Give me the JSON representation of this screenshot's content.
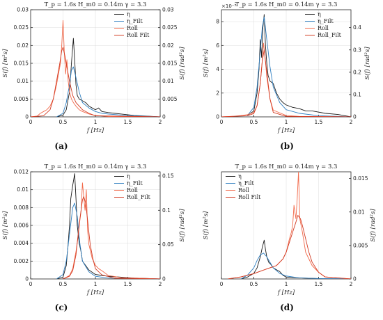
{
  "figure": {
    "colors": {
      "eta": "#1a1a1a",
      "eta_filt": "#2f7fc1",
      "roll": "#f26a4b",
      "roll_filt": "#d23a22"
    }
  },
  "chart_data": [
    {
      "id": "a",
      "type": "line",
      "caption": "(a)",
      "title": "T_p = 1.6s  H_m0 = 0.14m  γ = 3.3",
      "xlabel": "f [Hz]",
      "ylabel_left": "S(f) [m²s]",
      "ylabel_right": "S(f) [rad²s]",
      "xlim": [
        0,
        2
      ],
      "xticks": [
        "0",
        "0.5",
        "1",
        "1.5",
        "2"
      ],
      "ylim_left": [
        0,
        0.03
      ],
      "yticks_left": [
        "0",
        "0.005",
        "0.01",
        "0.015",
        "0.02",
        "0.025",
        "0.03"
      ],
      "ylim_right": [
        0,
        0.03
      ],
      "yticks_right": [
        "0",
        "0.005",
        "0.01",
        "0.015",
        "0.02",
        "0.025",
        "0.03"
      ],
      "left_multiplier": "",
      "legend": {
        "position": "top-right",
        "entries": [
          "η",
          "η_Filt",
          "Roll",
          "Roll Filt"
        ]
      },
      "series": [
        {
          "name": "η",
          "axis": "left",
          "color_key": "eta",
          "x": [
            0.4,
            0.5,
            0.55,
            0.6,
            0.63,
            0.66,
            0.68,
            0.7,
            0.72,
            0.75,
            0.8,
            0.85,
            0.9,
            0.95,
            1.0,
            1.05,
            1.1,
            1.2,
            1.3,
            1.4,
            1.5,
            1.6,
            1.8,
            2.0
          ],
          "y": [
            0.0,
            0.0005,
            0.002,
            0.007,
            0.015,
            0.022,
            0.016,
            0.009,
            0.006,
            0.005,
            0.0045,
            0.004,
            0.003,
            0.0025,
            0.002,
            0.0025,
            0.0015,
            0.0012,
            0.001,
            0.0008,
            0.0006,
            0.0004,
            0.0002,
            0.0
          ]
        },
        {
          "name": "η_Filt",
          "axis": "left",
          "color_key": "eta_filt",
          "x": [
            0.4,
            0.5,
            0.55,
            0.6,
            0.63,
            0.66,
            0.7,
            0.75,
            0.8,
            0.9,
            1.0,
            1.1,
            1.2,
            1.4,
            1.6,
            2.0
          ],
          "y": [
            0.0,
            0.001,
            0.004,
            0.009,
            0.013,
            0.014,
            0.011,
            0.007,
            0.004,
            0.0025,
            0.0015,
            0.001,
            0.0008,
            0.0005,
            0.0003,
            0.0
          ]
        },
        {
          "name": "Roll",
          "axis": "right",
          "color_key": "roll",
          "x": [
            0.0,
            0.1,
            0.15,
            0.2,
            0.25,
            0.3,
            0.35,
            0.4,
            0.43,
            0.46,
            0.48,
            0.5,
            0.52,
            0.54,
            0.56,
            0.58,
            0.6,
            0.63,
            0.66,
            0.7,
            0.75,
            0.8,
            0.9,
            1.0,
            1.2,
            2.0
          ],
          "y": [
            0.0,
            0.0002,
            0.001,
            0.0015,
            0.002,
            0.003,
            0.005,
            0.009,
            0.012,
            0.015,
            0.02,
            0.027,
            0.018,
            0.012,
            0.016,
            0.01,
            0.007,
            0.005,
            0.004,
            0.003,
            0.002,
            0.0015,
            0.0008,
            0.0004,
            0.0001,
            0.0
          ]
        },
        {
          "name": "Roll Filt",
          "axis": "right",
          "color_key": "roll_filt",
          "x": [
            0.0,
            0.2,
            0.3,
            0.35,
            0.4,
            0.45,
            0.48,
            0.5,
            0.53,
            0.56,
            0.6,
            0.65,
            0.7,
            0.8,
            0.9,
            1.0,
            2.0
          ],
          "y": [
            0.0,
            0.0003,
            0.002,
            0.005,
            0.01,
            0.015,
            0.0185,
            0.0195,
            0.017,
            0.014,
            0.01,
            0.006,
            0.004,
            0.002,
            0.001,
            0.0003,
            0.0
          ]
        }
      ]
    },
    {
      "id": "b",
      "type": "line",
      "caption": "(b)",
      "title": "T_p = 1.6s  H_m0 = 0.14m  γ = 3.3",
      "xlabel": "f [Hz]",
      "ylabel_left": "S(f) [m²s]",
      "ylabel_right": "S(f) [rad²s]",
      "xlim": [
        0,
        2
      ],
      "xticks": [
        "0",
        "0.5",
        "1",
        "1.5",
        "2"
      ],
      "ylim_left": [
        0,
        9
      ],
      "yticks_left": [
        "0",
        "2",
        "4",
        "6",
        "8"
      ],
      "ylim_right": [
        0,
        0.48
      ],
      "yticks_right": [
        "0",
        "0.1",
        "0.2",
        "0.3",
        "0.4"
      ],
      "left_multiplier": "×10⁻³",
      "legend": {
        "position": "top-right",
        "entries": [
          "η",
          "η_Filt",
          "Roll",
          "Roll_Filt"
        ]
      },
      "series": [
        {
          "name": "η",
          "axis": "left",
          "color_key": "eta",
          "x": [
            0.4,
            0.5,
            0.55,
            0.58,
            0.6,
            0.62,
            0.64,
            0.66,
            0.68,
            0.7,
            0.72,
            0.75,
            0.8,
            0.85,
            0.9,
            0.95,
            1.0,
            1.1,
            1.2,
            1.3,
            1.4,
            1.6,
            1.8,
            2.0
          ],
          "y": [
            0.1,
            0.5,
            2.0,
            4.0,
            6.5,
            5.0,
            7.5,
            8.6,
            6.0,
            4.5,
            3.5,
            3.0,
            2.8,
            2.0,
            1.5,
            1.2,
            1.0,
            0.8,
            0.7,
            0.5,
            0.5,
            0.3,
            0.2,
            0.0
          ]
        },
        {
          "name": "η_Filt",
          "axis": "left",
          "color_key": "eta_filt",
          "x": [
            0.4,
            0.5,
            0.55,
            0.6,
            0.63,
            0.66,
            0.7,
            0.75,
            0.8,
            0.9,
            1.0,
            1.2,
            1.5,
            2.0
          ],
          "y": [
            0.1,
            0.8,
            2.5,
            5.5,
            7.5,
            8.4,
            6.5,
            4.2,
            2.5,
            1.2,
            0.6,
            0.3,
            0.1,
            0.0
          ]
        },
        {
          "name": "Roll",
          "axis": "right",
          "color_key": "roll",
          "x": [
            0.0,
            0.2,
            0.3,
            0.4,
            0.5,
            0.55,
            0.6,
            0.63,
            0.65,
            0.67,
            0.7,
            0.75,
            0.8,
            1.0,
            1.2,
            2.0
          ],
          "y": [
            0.0,
            0.003,
            0.006,
            0.01,
            0.02,
            0.05,
            0.15,
            0.25,
            0.33,
            0.28,
            0.18,
            0.08,
            0.03,
            0.006,
            0.002,
            0.0
          ]
        },
        {
          "name": "Roll_Filt",
          "axis": "right",
          "color_key": "roll_filt",
          "x": [
            0.0,
            0.4,
            0.5,
            0.55,
            0.6,
            0.63,
            0.66,
            0.7,
            0.75,
            0.8,
            1.0,
            2.0
          ],
          "y": [
            0.0,
            0.005,
            0.015,
            0.05,
            0.15,
            0.25,
            0.3,
            0.2,
            0.08,
            0.02,
            0.002,
            0.0
          ]
        }
      ]
    },
    {
      "id": "c",
      "type": "line",
      "caption": "(c)",
      "title": "T_p = 1.6s  H_m0 = 0.14m  γ = 3.3",
      "xlabel": "f [Hz]",
      "ylabel_left": "S(f) [m²s]",
      "ylabel_right": "S(f) [rad²s]",
      "xlim": [
        0,
        2
      ],
      "xticks": [
        "0",
        "0.5",
        "1",
        "1.5",
        "2"
      ],
      "ylim_left": [
        0,
        0.012
      ],
      "yticks_left": [
        "0",
        "0.002",
        "0.004",
        "0.006",
        "0.008",
        "0.01",
        "0.012"
      ],
      "ylim_right": [
        0,
        0.156
      ],
      "yticks_right": [
        "0",
        "0.05",
        "0.1",
        "0.15"
      ],
      "left_multiplier": "",
      "legend": {
        "position": "top-right",
        "entries": [
          "η",
          "η_Filt",
          "Roll",
          "Roll_Filt"
        ]
      },
      "series": [
        {
          "name": "η",
          "axis": "left",
          "color_key": "eta",
          "x": [
            0.4,
            0.5,
            0.55,
            0.58,
            0.6,
            0.62,
            0.65,
            0.68,
            0.7,
            0.72,
            0.75,
            0.78,
            0.8,
            0.85,
            0.9,
            1.0,
            1.1,
            1.2,
            1.4,
            1.6,
            2.0
          ],
          "y": [
            0.0,
            0.0002,
            0.0015,
            0.004,
            0.006,
            0.009,
            0.0105,
            0.0118,
            0.009,
            0.006,
            0.004,
            0.003,
            0.002,
            0.0015,
            0.001,
            0.0005,
            0.0004,
            0.0003,
            0.0002,
            0.0001,
            0.0
          ]
        },
        {
          "name": "η_Filt",
          "axis": "left",
          "color_key": "eta_filt",
          "x": [
            0.4,
            0.5,
            0.55,
            0.6,
            0.65,
            0.68,
            0.72,
            0.76,
            0.8,
            0.9,
            1.0,
            1.2,
            2.0
          ],
          "y": [
            0.0,
            0.0005,
            0.002,
            0.005,
            0.008,
            0.0085,
            0.007,
            0.004,
            0.002,
            0.0008,
            0.0003,
            0.0001,
            0.0
          ]
        },
        {
          "name": "Roll",
          "axis": "right",
          "color_key": "roll",
          "x": [
            0.5,
            0.6,
            0.65,
            0.7,
            0.73,
            0.76,
            0.78,
            0.8,
            0.82,
            0.84,
            0.86,
            0.88,
            0.9,
            0.95,
            1.0,
            1.05,
            1.1,
            1.2,
            1.4,
            2.0
          ],
          "y": [
            0.0,
            0.005,
            0.015,
            0.04,
            0.06,
            0.085,
            0.1,
            0.14,
            0.12,
            0.1,
            0.13,
            0.07,
            0.05,
            0.03,
            0.02,
            0.015,
            0.012,
            0.005,
            0.002,
            0.0
          ]
        },
        {
          "name": "Roll_Filt",
          "axis": "right",
          "color_key": "roll_filt",
          "x": [
            0.5,
            0.6,
            0.65,
            0.7,
            0.75,
            0.8,
            0.82,
            0.85,
            0.88,
            0.92,
            0.96,
            1.0,
            1.1,
            1.3,
            2.0
          ],
          "y": [
            0.0,
            0.004,
            0.012,
            0.035,
            0.08,
            0.115,
            0.12,
            0.11,
            0.085,
            0.05,
            0.03,
            0.015,
            0.006,
            0.001,
            0.0
          ]
        }
      ]
    },
    {
      "id": "d",
      "type": "line",
      "caption": "(d)",
      "title": "T_p = 1.6s  H_m0 = 0.14m  γ = 3.3",
      "xlabel": "f [Hz]",
      "ylabel_left": "S(f) [m²s]",
      "ylabel_right": "S(f) [rad²s]",
      "xlim": [
        0,
        2
      ],
      "xticks": [
        "0",
        "0.5",
        "1",
        "1.5",
        "2"
      ],
      "ylim_left": [
        0,
        0.029
      ],
      "yticks_left": [],
      "ylim_right": [
        0,
        0.016
      ],
      "yticks_right": [
        "0",
        "0.005",
        "0.01",
        "0.015"
      ],
      "left_multiplier": "",
      "legend": {
        "position": "top-left",
        "entries": [
          "η",
          "η_Filt",
          "Roll",
          "Roll Filt"
        ]
      },
      "series": [
        {
          "name": "η",
          "axis": "left",
          "color_key": "eta",
          "x": [
            0.3,
            0.4,
            0.5,
            0.55,
            0.6,
            0.63,
            0.66,
            0.68,
            0.7,
            0.73,
            0.76,
            0.8,
            0.85,
            0.9,
            0.95,
            1.0,
            1.2,
            1.5,
            2.0
          ],
          "y": [
            0.0,
            0.0005,
            0.0015,
            0.003,
            0.006,
            0.0085,
            0.0105,
            0.008,
            0.006,
            0.0045,
            0.004,
            0.003,
            0.0025,
            0.002,
            0.001,
            0.0005,
            0.0003,
            0.0001,
            0.0
          ]
        },
        {
          "name": "η_Filt",
          "axis": "left",
          "color_key": "eta_filt",
          "x": [
            0.3,
            0.4,
            0.5,
            0.55,
            0.6,
            0.65,
            0.7,
            0.75,
            0.8,
            0.9,
            1.0,
            1.2,
            1.5,
            2.0
          ],
          "y": [
            0.0,
            0.001,
            0.003,
            0.005,
            0.0065,
            0.007,
            0.006,
            0.0045,
            0.003,
            0.0015,
            0.0008,
            0.0003,
            0.0001,
            0.0
          ]
        },
        {
          "name": "Roll",
          "axis": "right",
          "color_key": "roll",
          "x": [
            0.1,
            0.3,
            0.5,
            0.7,
            0.85,
            0.95,
            1.0,
            1.05,
            1.08,
            1.1,
            1.12,
            1.15,
            1.17,
            1.19,
            1.21,
            1.23,
            1.25,
            1.3,
            1.35,
            1.4,
            1.5,
            1.6,
            2.0
          ],
          "y": [
            0.0,
            0.0003,
            0.0008,
            0.0015,
            0.002,
            0.003,
            0.004,
            0.006,
            0.007,
            0.008,
            0.011,
            0.009,
            0.012,
            0.016,
            0.009,
            0.008,
            0.007,
            0.004,
            0.003,
            0.002,
            0.001,
            0.0003,
            0.0
          ]
        },
        {
          "name": "Roll Filt",
          "axis": "right",
          "color_key": "roll_filt",
          "x": [
            0.1,
            0.3,
            0.5,
            0.7,
            0.85,
            0.95,
            1.0,
            1.05,
            1.1,
            1.15,
            1.18,
            1.22,
            1.25,
            1.3,
            1.35,
            1.4,
            1.5,
            1.6,
            2.0
          ],
          "y": [
            0.0,
            0.0003,
            0.0008,
            0.0015,
            0.002,
            0.003,
            0.004,
            0.0055,
            0.007,
            0.0085,
            0.0095,
            0.009,
            0.008,
            0.006,
            0.004,
            0.0025,
            0.001,
            0.0003,
            0.0
          ]
        }
      ]
    }
  ]
}
